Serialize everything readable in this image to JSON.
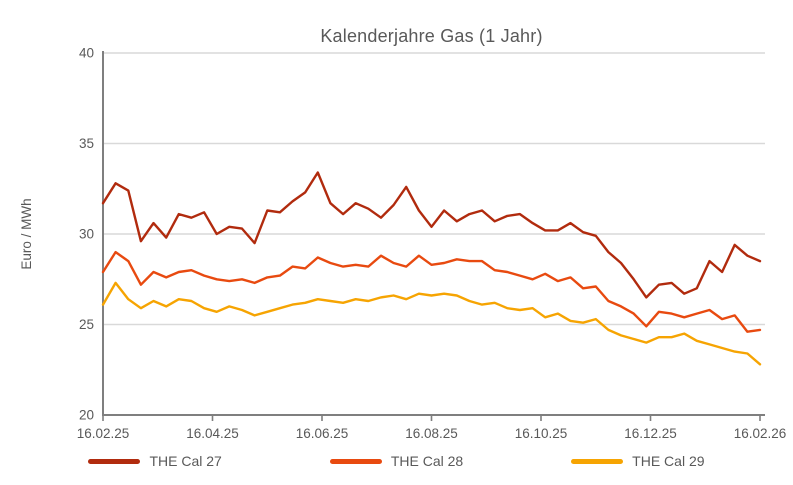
{
  "colors": {
    "background": "#FFFFFF",
    "text": "#595959",
    "grid": "#D9D9D9",
    "axis": "#7F7F7F"
  },
  "chart_data": {
    "type": "line",
    "title": "Kalenderjahre Gas (1 Jahr)",
    "xlabel": "",
    "ylabel": "Euro / MWh",
    "ylim": [
      20,
      40
    ],
    "yticks": [
      20,
      25,
      30,
      35,
      40
    ],
    "xtick_labels": [
      "16.02.25",
      "16.04.25",
      "16.06.25",
      "16.08.25",
      "16.10.25",
      "16.12.25",
      "16.02.26"
    ],
    "grid": true,
    "legend_position": "bottom",
    "series": [
      {
        "name": "THE Cal 27",
        "color": "#B12B0E",
        "values": [
          31.7,
          32.8,
          32.4,
          29.6,
          30.6,
          29.8,
          31.1,
          30.9,
          31.2,
          30.0,
          30.4,
          30.3,
          29.5,
          31.3,
          31.2,
          31.8,
          32.3,
          33.4,
          31.7,
          31.1,
          31.7,
          31.4,
          30.9,
          31.6,
          32.6,
          31.3,
          30.4,
          31.3,
          30.7,
          31.1,
          31.3,
          30.7,
          31.0,
          31.1,
          30.6,
          30.2,
          30.2,
          30.6,
          30.1,
          29.9,
          29.0,
          28.4,
          27.5,
          26.5,
          27.2,
          27.3,
          26.7,
          27.0,
          28.5,
          27.9,
          29.4,
          28.8,
          28.5
        ]
      },
      {
        "name": "THE Cal 28",
        "color": "#E84A10",
        "values": [
          27.9,
          29.0,
          28.5,
          27.2,
          27.9,
          27.6,
          27.9,
          28.0,
          27.7,
          27.5,
          27.4,
          27.5,
          27.3,
          27.6,
          27.7,
          28.2,
          28.1,
          28.7,
          28.4,
          28.2,
          28.3,
          28.2,
          28.8,
          28.4,
          28.2,
          28.8,
          28.3,
          28.4,
          28.6,
          28.5,
          28.5,
          28.0,
          27.9,
          27.7,
          27.5,
          27.8,
          27.4,
          27.6,
          27.0,
          27.1,
          26.3,
          26.0,
          25.6,
          24.9,
          25.7,
          25.6,
          25.4,
          25.6,
          25.8,
          25.3,
          25.5,
          24.6,
          24.7
        ]
      },
      {
        "name": "THE Cal 29",
        "color": "#F6A402",
        "values": [
          26.1,
          27.3,
          26.4,
          25.9,
          26.3,
          26.0,
          26.4,
          26.3,
          25.9,
          25.7,
          26.0,
          25.8,
          25.5,
          25.7,
          25.9,
          26.1,
          26.2,
          26.4,
          26.3,
          26.2,
          26.4,
          26.3,
          26.5,
          26.6,
          26.4,
          26.7,
          26.6,
          26.7,
          26.6,
          26.3,
          26.1,
          26.2,
          25.9,
          25.8,
          25.9,
          25.4,
          25.6,
          25.2,
          25.1,
          25.3,
          24.7,
          24.4,
          24.2,
          24.0,
          24.3,
          24.3,
          24.5,
          24.1,
          23.9,
          23.7,
          23.5,
          23.4,
          22.8
        ]
      }
    ]
  }
}
